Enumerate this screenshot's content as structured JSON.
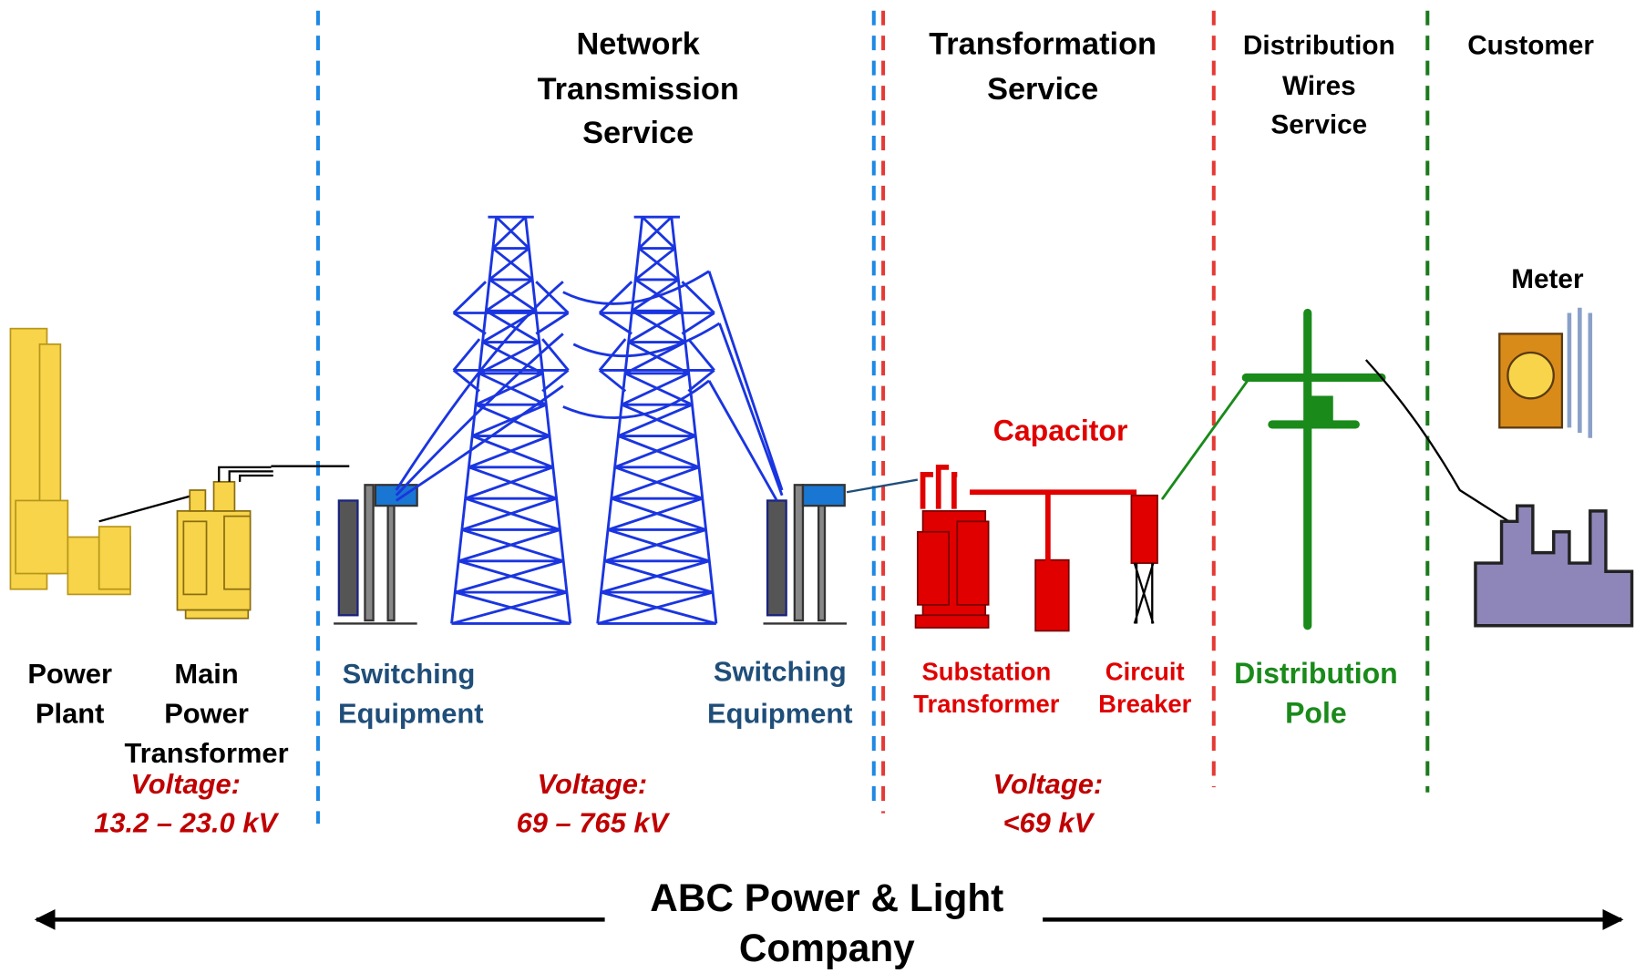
{
  "sections": [
    {
      "lines": [
        "Network",
        "Transmission",
        "Service"
      ]
    },
    {
      "lines": [
        "Transformation",
        "Service"
      ]
    },
    {
      "lines": [
        "Distribution",
        "Wires",
        "Service"
      ]
    },
    {
      "lines": [
        "Customer"
      ]
    }
  ],
  "components": [
    {
      "lines": [
        "Power",
        "Plant"
      ]
    },
    {
      "lines": [
        "Main",
        "Power",
        "Transformer"
      ]
    },
    {
      "lines": [
        "Switching",
        "Equipment"
      ]
    },
    {
      "lines": [
        "Switching",
        "Equipment"
      ]
    },
    {
      "lines": [
        "Capacitor"
      ]
    },
    {
      "lines": [
        "Substation",
        "Transformer"
      ]
    },
    {
      "lines": [
        "Circuit",
        "Breaker"
      ]
    },
    {
      "lines": [
        "Distribution",
        "Pole"
      ]
    },
    {
      "lines": [
        "Meter"
      ]
    }
  ],
  "voltages": [
    {
      "lines": [
        "Voltage:",
        "13.2 – 23.0 kV"
      ]
    },
    {
      "lines": [
        "Voltage:",
        "69 – 765 kV"
      ]
    },
    {
      "lines": [
        "Voltage:",
        "<69 kV"
      ]
    }
  ],
  "company": {
    "lines": [
      "ABC Power & Light",
      "Company"
    ]
  }
}
